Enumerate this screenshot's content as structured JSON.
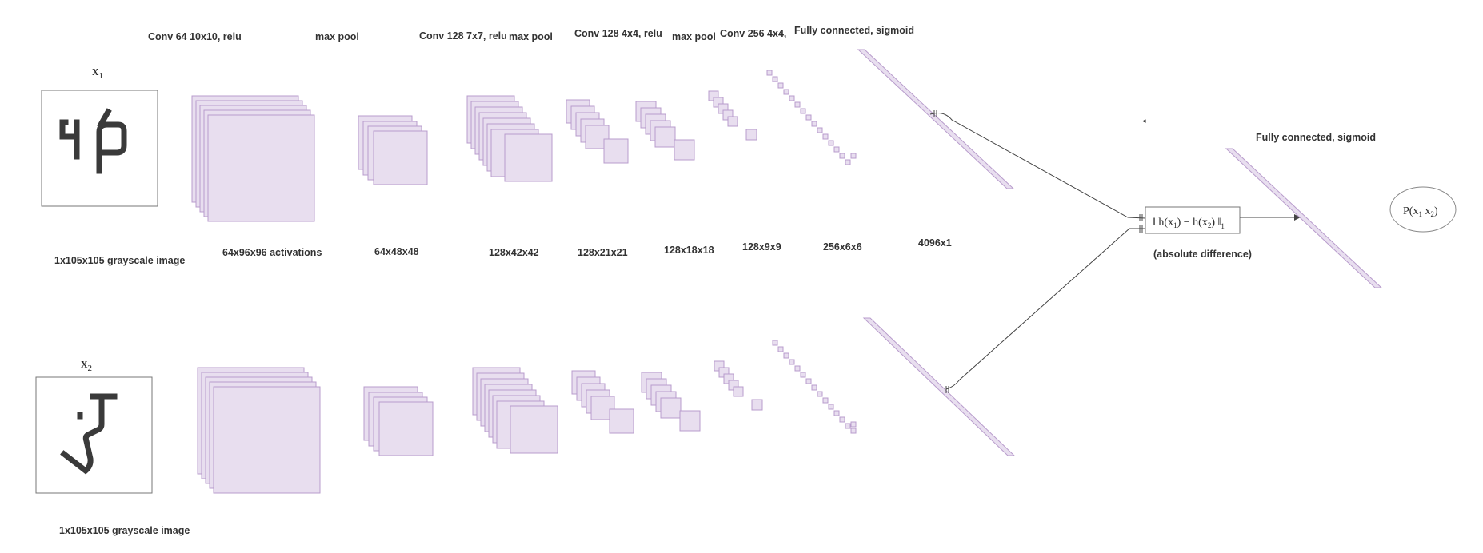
{
  "layers_top": {
    "conv1": "Conv 64 10x10, relu",
    "pool1": "max pool",
    "conv2": "Conv 128 7x7, relu",
    "pool2": "max pool",
    "conv3": "Conv 128 4x4, relu",
    "pool3": "max pool",
    "conv4": "Conv 256 4x4,",
    "fc1": "Fully connected, sigmoid",
    "fc2": "Fully connected, sigmoid"
  },
  "inputs": {
    "x1": {
      "name": "x",
      "sub": "1",
      "caption": "1x105x105 grayscale image"
    },
    "x2": {
      "name": "x",
      "sub": "2",
      "caption": "1x105x105 grayscale image"
    }
  },
  "shapes": [
    "64x96x96 activations",
    "64x48x48",
    "128x42x42",
    "128x21x21",
    "128x18x18",
    "128x9x9",
    "256x6x6",
    "4096x1"
  ],
  "distance": {
    "formula_pre": "‖ h(x",
    "s1": "1",
    "formula_mid": ") − h(x",
    "s2": "2",
    "formula_post": ") ‖",
    "norm_sub": "1",
    "caption": "(absolute difference)"
  },
  "output": {
    "pre": "P(x",
    "s1": "1",
    "mid": "  x",
    "s2": "2",
    "post": ")"
  },
  "colors": {
    "feature_fill": "#e8deef",
    "feature_stroke": "#b89ccc",
    "glyph": "#3a3a3a",
    "line": "#444444"
  }
}
